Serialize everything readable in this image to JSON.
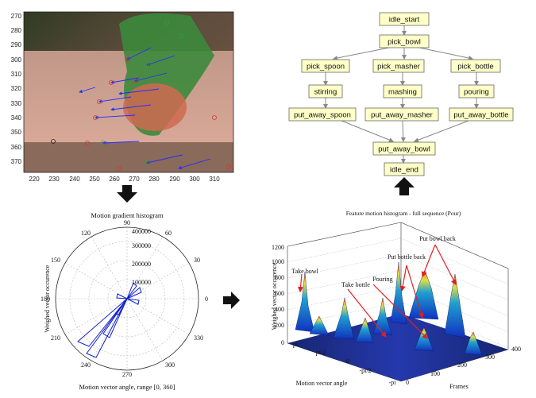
{
  "video_frame": {
    "y_ticks": [
      "270",
      "280",
      "290",
      "300",
      "310",
      "320",
      "330",
      "340",
      "350",
      "360",
      "370"
    ],
    "x_ticks": [
      "220",
      "230",
      "240",
      "250",
      "260",
      "270",
      "280",
      "290",
      "300",
      "310"
    ]
  },
  "task_graph": {
    "nodes": {
      "idle_start": "idle_start",
      "pick_bowl": "pick_bowl",
      "pick_spoon": "pick_spoon",
      "pick_masher": "pick_masher",
      "pick_bottle": "pick_bottle",
      "stirring": "stirring",
      "mashing": "mashing",
      "pouring": "pouring",
      "put_away_spoon": "put_away_spoon",
      "put_away_masher": "put_away_masher",
      "put_away_bottle": "put_away_bottle",
      "put_away_bowl": "put_away_bowl",
      "idle_end": "idle_end"
    }
  },
  "polar_plot": {
    "title": "Motion gradient histogram",
    "ylabel": "Weighed vector occurence",
    "xlabel": "Motion vector angle, range [0, 360]",
    "angle_labels": [
      "0",
      "30",
      "60",
      "90",
      "120",
      "150",
      "180",
      "210",
      "240",
      "270",
      "300",
      "330"
    ],
    "radius_labels": [
      "100000",
      "200000",
      "300000",
      "400000"
    ]
  },
  "surface_plot": {
    "title": "Feature motion histogram - full sequence (Pour)",
    "zlabel": "Weighed vector occurence",
    "xlabel": "Motion vector angle",
    "ylabel": "Frames",
    "z_ticks": [
      "0",
      "200",
      "400",
      "600",
      "800",
      "1000",
      "1200"
    ],
    "angle_ticks": [
      "pi",
      "pi/2",
      "0",
      "-pi/2",
      "-pi"
    ],
    "frame_ticks": [
      "0",
      "100",
      "200",
      "300",
      "400"
    ],
    "annotations": {
      "take_bowl": "Take bowl",
      "take_bottle": "Take bottle",
      "pouring": "Pouring",
      "put_bottle_back": "Put bottle back",
      "put_bowl_back": "Put bowl back"
    }
  },
  "chart_data": [
    {
      "type": "scatter",
      "title": "",
      "xlabel": "",
      "ylabel": "",
      "xlim": [
        213,
        318
      ],
      "ylim": [
        377,
        268
      ]
    },
    {
      "type": "scatter",
      "title": "Motion gradient histogram",
      "xlabel": "Motion vector angle, range [0, 360]",
      "ylabel": "Weighed vector occurence",
      "rlim": [
        0,
        400000
      ]
    },
    {
      "type": "area",
      "title": "Feature motion histogram - full sequence (Pour)",
      "xlabel": "Motion vector angle",
      "ylabel": "Frames",
      "zlabel": "Weighed vector occurence",
      "zlim": [
        0,
        1200
      ],
      "frames_range": [
        0,
        400
      ]
    }
  ]
}
